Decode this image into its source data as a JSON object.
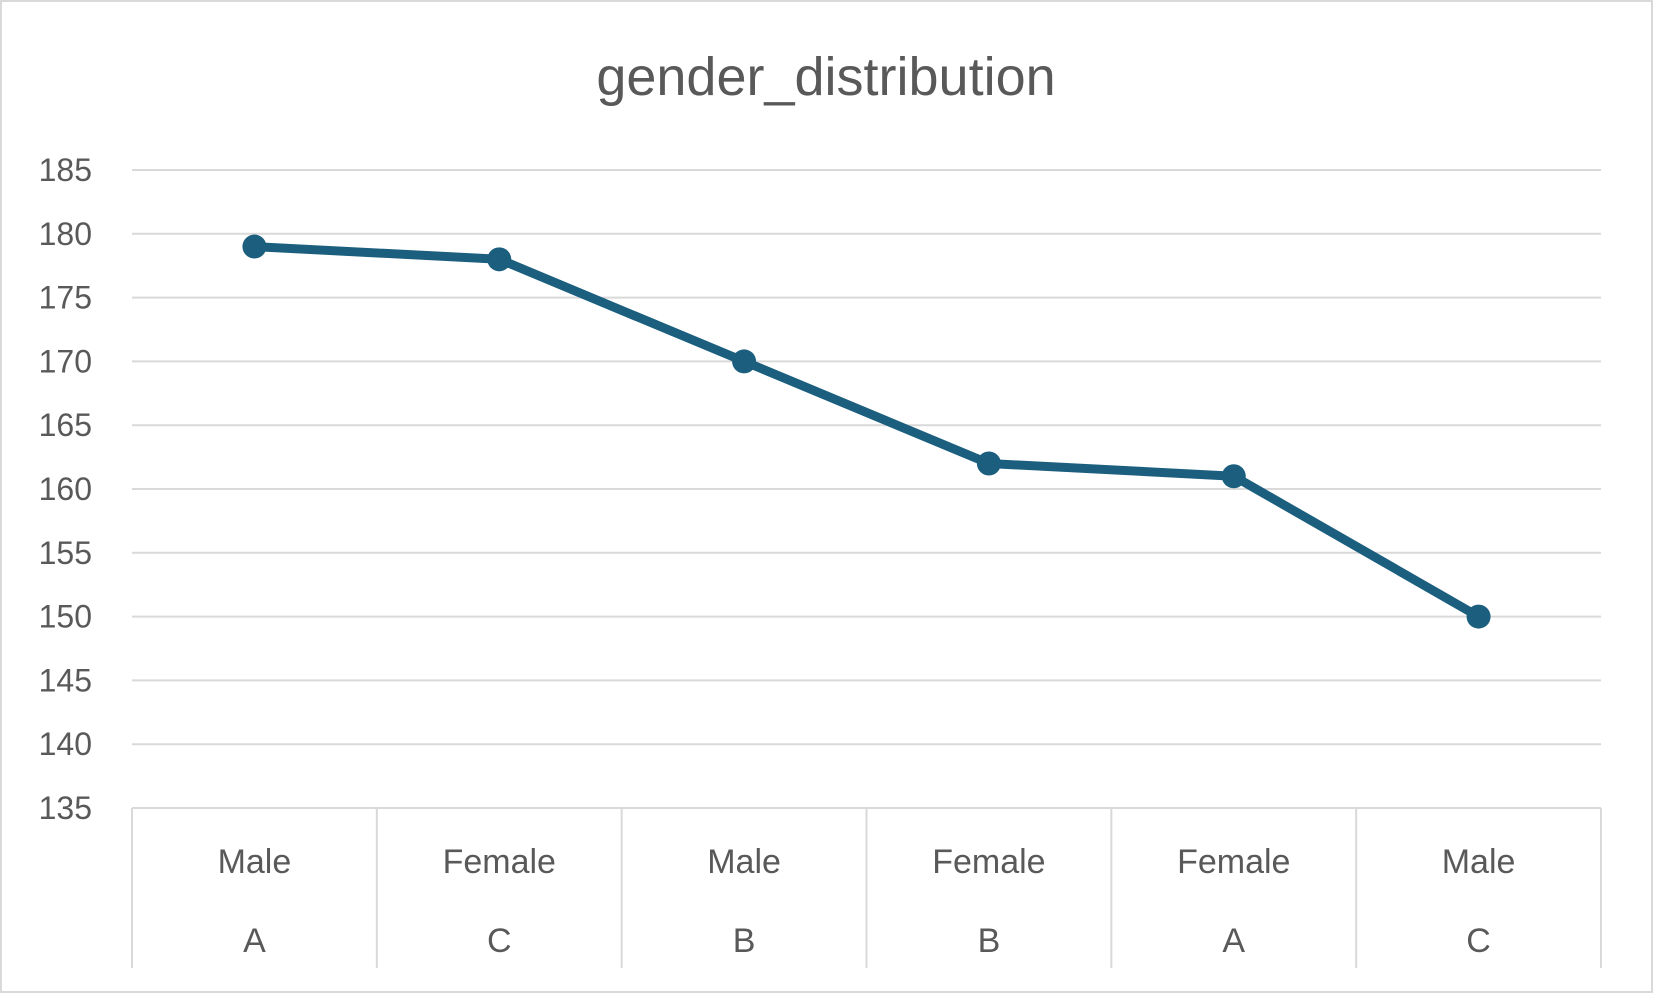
{
  "chart_data": {
    "type": "line",
    "title": "gender_distribution",
    "xlabel": "",
    "ylabel": "",
    "ylim": [
      135,
      185
    ],
    "ytick_step": 5,
    "grid": true,
    "legend": "none",
    "categories": [
      {
        "inner": "Male",
        "outer": "A"
      },
      {
        "inner": "Female",
        "outer": "C"
      },
      {
        "inner": "Male",
        "outer": "B"
      },
      {
        "inner": "Female",
        "outer": "B"
      },
      {
        "inner": "Female",
        "outer": "A"
      },
      {
        "inner": "Male",
        "outer": "C"
      }
    ],
    "series": [
      {
        "values": [
          179,
          178,
          170,
          162,
          161,
          150
        ],
        "color": "#1b5e7e"
      }
    ]
  }
}
